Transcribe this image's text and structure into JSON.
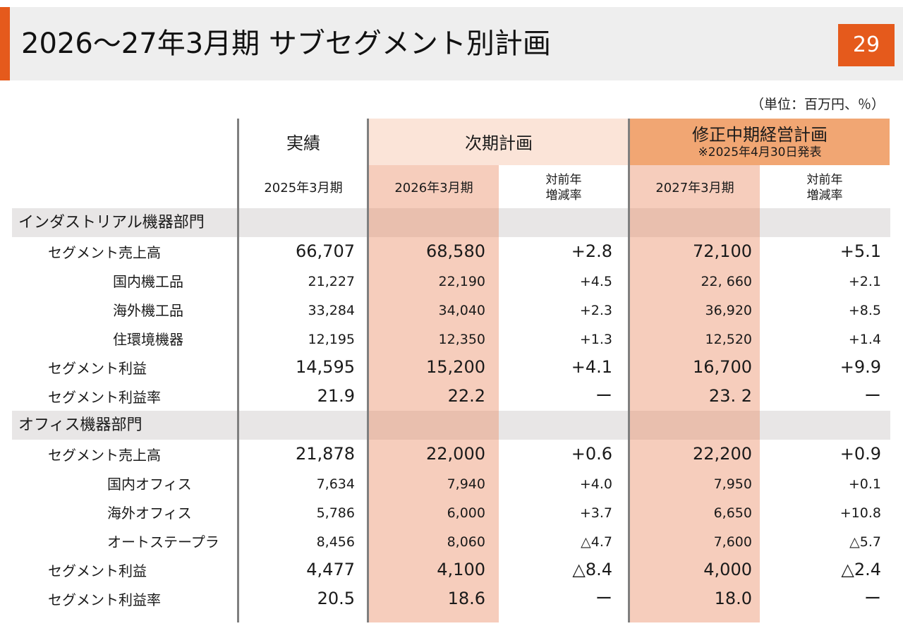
{
  "header": {
    "title": "2026～27年3月期 サブセグメント別計画",
    "page_number": "29",
    "unit_note": "（単位：百万円、％）"
  },
  "columns": {
    "actual_group": "実績",
    "actual_period": "2025年3月期",
    "plan_group": "次期計画",
    "plan_period": "2026年3月期",
    "plan_yoy_line1": "対前年",
    "plan_yoy_line2": "増減率",
    "mid_group": "修正中期経営計画",
    "mid_note": "※2025年4月30日発表",
    "mid_period": "2027年3月期",
    "mid_yoy_line1": "対前年",
    "mid_yoy_line2": "増減率"
  },
  "colors": {
    "accent": "#e55a1c",
    "plan_header_bg": "#fbe4d8",
    "plan_column_bg": "#f6cdbc",
    "mid_header_bg": "#f1a673",
    "section_bg": "#e8e6e6"
  },
  "sections": [
    {
      "name": "インダストリアル機器部門",
      "rows": [
        {
          "label": "セグメント売上高",
          "actual": "66,707",
          "plan": "68,580",
          "plan_yoy": "+2.8",
          "mid": "72,100",
          "mid_yoy": "+5.1",
          "style": "main"
        },
        {
          "label": "国内機工品",
          "actual": "21,227",
          "plan": "22,190",
          "plan_yoy": "+4.5",
          "mid": "22, 660",
          "mid_yoy": "+2.1",
          "style": "sub"
        },
        {
          "label": "海外機工品",
          "actual": "33,284",
          "plan": "34,040",
          "plan_yoy": "+2.3",
          "mid": "36,920",
          "mid_yoy": "+8.5",
          "style": "sub"
        },
        {
          "label": "住環境機器",
          "actual": "12,195",
          "plan": "12,350",
          "plan_yoy": "+1.3",
          "mid": "12,520",
          "mid_yoy": "+1.4",
          "style": "sub"
        },
        {
          "label": "セグメント利益",
          "actual": "14,595",
          "plan": "15,200",
          "plan_yoy": "+4.1",
          "mid": "16,700",
          "mid_yoy": "+9.9",
          "style": "main"
        },
        {
          "label": "セグメント利益率",
          "actual": "21.9",
          "plan": "22.2",
          "plan_yoy": "ー",
          "mid": "23. 2",
          "mid_yoy": "ー",
          "style": "main"
        }
      ]
    },
    {
      "name": "オフィス機器部門",
      "rows": [
        {
          "label": "セグメント売上高",
          "actual": "21,878",
          "plan": "22,000",
          "plan_yoy": "+0.6",
          "mid": "22,200",
          "mid_yoy": "+0.9",
          "style": "main"
        },
        {
          "label": "国内オフィス",
          "actual": "7,634",
          "plan": "7,940",
          "plan_yoy": "+4.0",
          "mid": "7,950",
          "mid_yoy": "+0.1",
          "style": "sub"
        },
        {
          "label": "海外オフィス",
          "actual": "5,786",
          "plan": "6,000",
          "plan_yoy": "+3.7",
          "mid": "6,650",
          "mid_yoy": "+10.8",
          "style": "sub"
        },
        {
          "label": "オートステープラ",
          "actual": "8,456",
          "plan": "8,060",
          "plan_yoy": "△4.7",
          "mid": "7,600",
          "mid_yoy": "△5.7",
          "style": "sub"
        },
        {
          "label": "セグメント利益",
          "actual": "4,477",
          "plan": "4,100",
          "plan_yoy": "△8.4",
          "mid": "4,000",
          "mid_yoy": "△2.4",
          "style": "main"
        },
        {
          "label": "セグメント利益率",
          "actual": "20.5",
          "plan": "18.6",
          "plan_yoy": "ー",
          "mid": "18.0",
          "mid_yoy": "ー",
          "style": "main"
        }
      ]
    }
  ]
}
